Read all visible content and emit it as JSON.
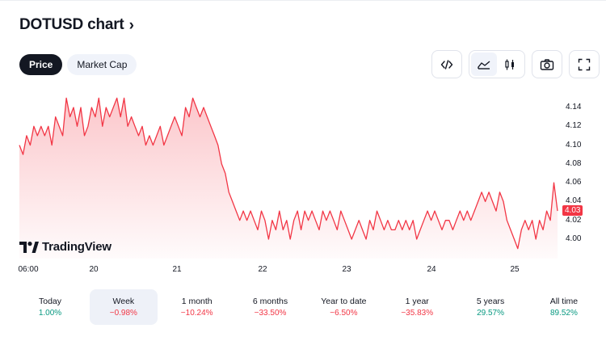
{
  "title": "DOTUSD chart",
  "tabs": [
    {
      "label": "Price",
      "active": true
    },
    {
      "label": "Market Cap",
      "active": false
    }
  ],
  "tools": [
    "code-icon",
    "area-chart-icon",
    "candles-icon",
    "camera-icon",
    "fullscreen-icon"
  ],
  "colors": {
    "line": "#f23645",
    "positive": "#089981",
    "negative": "#f23645",
    "accent": "#131722"
  },
  "chart_data": {
    "type": "area",
    "x_ticks": [
      "06:00",
      "20",
      "21",
      "22",
      "23",
      "24",
      "25"
    ],
    "y_ticks": [
      "4.14",
      "4.12",
      "4.10",
      "4.08",
      "4.06",
      "4.04",
      "4.02",
      "4.00"
    ],
    "ylim": [
      3.985,
      4.16
    ],
    "last_price": "4.03",
    "watermark": "TradingView",
    "values": [
      4.1,
      4.09,
      4.11,
      4.1,
      4.12,
      4.11,
      4.12,
      4.11,
      4.12,
      4.1,
      4.13,
      4.12,
      4.11,
      4.15,
      4.13,
      4.14,
      4.12,
      4.14,
      4.11,
      4.12,
      4.14,
      4.13,
      4.15,
      4.12,
      4.14,
      4.13,
      4.14,
      4.15,
      4.13,
      4.15,
      4.12,
      4.13,
      4.12,
      4.11,
      4.12,
      4.1,
      4.11,
      4.1,
      4.11,
      4.12,
      4.1,
      4.11,
      4.12,
      4.13,
      4.12,
      4.11,
      4.14,
      4.13,
      4.15,
      4.14,
      4.13,
      4.14,
      4.13,
      4.12,
      4.11,
      4.1,
      4.08,
      4.07,
      4.05,
      4.04,
      4.03,
      4.02,
      4.03,
      4.02,
      4.03,
      4.02,
      4.01,
      4.03,
      4.02,
      4.0,
      4.02,
      4.01,
      4.03,
      4.01,
      4.02,
      4.0,
      4.02,
      4.03,
      4.01,
      4.03,
      4.02,
      4.03,
      4.02,
      4.01,
      4.03,
      4.02,
      4.03,
      4.02,
      4.01,
      4.03,
      4.02,
      4.01,
      4.0,
      4.01,
      4.02,
      4.01,
      4.0,
      4.02,
      4.01,
      4.03,
      4.02,
      4.01,
      4.02,
      4.01,
      4.01,
      4.02,
      4.01,
      4.02,
      4.01,
      4.02,
      4.0,
      4.01,
      4.02,
      4.03,
      4.02,
      4.03,
      4.02,
      4.01,
      4.02,
      4.02,
      4.01,
      4.02,
      4.03,
      4.02,
      4.03,
      4.02,
      4.03,
      4.04,
      4.05,
      4.04,
      4.05,
      4.04,
      4.03,
      4.05,
      4.04,
      4.02,
      4.01,
      4.0,
      3.99,
      4.01,
      4.02,
      4.01,
      4.02,
      4.0,
      4.02,
      4.01,
      4.03,
      4.02,
      4.06,
      4.03
    ]
  },
  "periods": [
    {
      "name": "Today",
      "value": "1.00%",
      "dir": "pos",
      "selected": false
    },
    {
      "name": "Week",
      "value": "−0.98%",
      "dir": "neg",
      "selected": true
    },
    {
      "name": "1 month",
      "value": "−10.24%",
      "dir": "neg",
      "selected": false
    },
    {
      "name": "6 months",
      "value": "−33.50%",
      "dir": "neg",
      "selected": false
    },
    {
      "name": "Year to date",
      "value": "−6.50%",
      "dir": "neg",
      "selected": false
    },
    {
      "name": "1 year",
      "value": "−35.83%",
      "dir": "neg",
      "selected": false
    },
    {
      "name": "5 years",
      "value": "29.57%",
      "dir": "pos",
      "selected": false
    },
    {
      "name": "All time",
      "value": "89.52%",
      "dir": "pos",
      "selected": false
    }
  ]
}
